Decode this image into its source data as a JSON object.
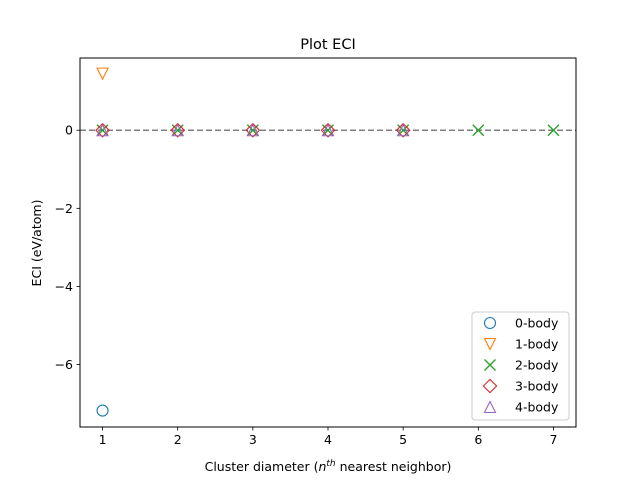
{
  "chart_data": {
    "type": "scatter",
    "title": "Plot ECI",
    "xlabel_main": "Cluster diameter (",
    "xlabel_var": "n",
    "xlabel_sup": "th",
    "xlabel_rest": " nearest neighbor)",
    "ylabel": "ECI (eV/atom)",
    "xlim": [
      0.7,
      7.3
    ],
    "ylim": [
      -7.6,
      1.85
    ],
    "x_ticks": [
      1,
      2,
      3,
      4,
      5,
      6,
      7
    ],
    "y_ticks": [
      -6,
      -4,
      -2,
      0
    ],
    "y_tick_labels": [
      "−6",
      "−4",
      "−2",
      "0"
    ],
    "reference_line": {
      "y": 0,
      "style": "dashed",
      "color": "#808080"
    },
    "grid": false,
    "legend_position": "lower-right",
    "series": [
      {
        "name": "0-body",
        "marker": "circle",
        "color": "#1f77b4",
        "points": [
          {
            "x": 1,
            "y": -7.18
          }
        ]
      },
      {
        "name": "1-body",
        "marker": "triangle-down",
        "color": "#ff7f0e",
        "points": [
          {
            "x": 1,
            "y": 1.45
          }
        ]
      },
      {
        "name": "2-body",
        "marker": "x",
        "color": "#2ca02c",
        "points": [
          {
            "x": 1,
            "y": 0
          },
          {
            "x": 2,
            "y": 0
          },
          {
            "x": 3,
            "y": 0
          },
          {
            "x": 4,
            "y": 0
          },
          {
            "x": 5,
            "y": 0
          },
          {
            "x": 6,
            "y": 0
          },
          {
            "x": 7,
            "y": 0
          }
        ]
      },
      {
        "name": "3-body",
        "marker": "diamond",
        "color": "#d62728",
        "points": [
          {
            "x": 1,
            "y": 0
          },
          {
            "x": 2,
            "y": 0
          },
          {
            "x": 3,
            "y": 0
          },
          {
            "x": 4,
            "y": 0
          },
          {
            "x": 5,
            "y": 0
          }
        ]
      },
      {
        "name": "4-body",
        "marker": "triangle-up",
        "color": "#9467bd",
        "points": [
          {
            "x": 1,
            "y": 0
          },
          {
            "x": 2,
            "y": 0
          },
          {
            "x": 3,
            "y": 0
          },
          {
            "x": 4,
            "y": 0
          },
          {
            "x": 5,
            "y": 0
          }
        ]
      }
    ]
  }
}
